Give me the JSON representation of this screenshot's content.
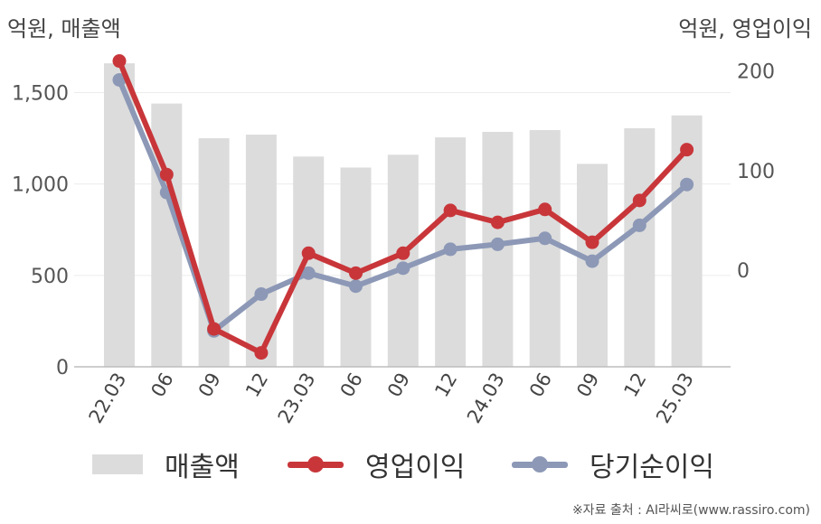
{
  "units": {
    "left": "억원, 매출액",
    "right": "억원, 영업이익"
  },
  "source": "※자료 출처 : AI라씨로(www.rassiro.com)",
  "chart_data": {
    "type": "bar",
    "categories": [
      "22.03",
      "06",
      "09",
      "12",
      "23.03",
      "06",
      "09",
      "12",
      "24.03",
      "06",
      "09",
      "12",
      "25.03"
    ],
    "left_axis": {
      "ylim": [
        0,
        1700
      ],
      "ticks": [
        0,
        500,
        1000,
        1500
      ],
      "tick_labels": [
        "0",
        "500",
        "1,000",
        "1,500"
      ]
    },
    "right_axis": {
      "ylim": [
        -97,
        215
      ],
      "ticks": [
        0,
        100,
        200
      ],
      "tick_labels": [
        "0",
        "100",
        "200"
      ]
    },
    "grid": true,
    "legend_position": "bottom",
    "series": [
      {
        "name": "매출액",
        "type": "bar",
        "axis": "left",
        "color": "#dcdcdc",
        "values": [
          1660,
          1440,
          1250,
          1270,
          1150,
          1090,
          1160,
          1255,
          1285,
          1295,
          1110,
          1305,
          1375
        ]
      },
      {
        "name": "영업이익",
        "type": "line",
        "axis": "right",
        "color": "#c8363a",
        "values": [
          210,
          96,
          -59,
          -83,
          17,
          -3,
          17,
          60,
          48,
          61,
          28,
          70,
          121
        ]
      },
      {
        "name": "당기순이익",
        "type": "line",
        "axis": "right",
        "color": "#8c98b6",
        "values": [
          191,
          78,
          -61,
          -24,
          -3,
          -16,
          2,
          21,
          26,
          32,
          9,
          45,
          86
        ]
      }
    ]
  }
}
